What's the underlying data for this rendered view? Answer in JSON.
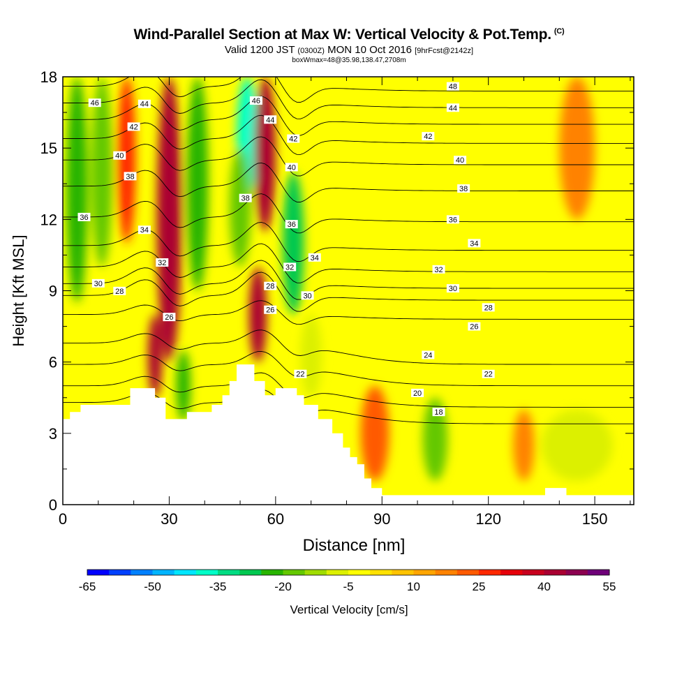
{
  "title": {
    "main": "Wind-Parallel Section at Max W: Vertical Velocity & Pot.Temp.",
    "copyright": "(C)",
    "sub_prefix": "Valid 1200 JST",
    "sub_zulu": "(0300Z)",
    "sub_date": "MON 10 Oct 2016",
    "sub_fcst": "[9hrFcst@2142z]",
    "note": "boxWmax=48@35.98,138.47,2708m"
  },
  "chart_data": {
    "type": "heatmap",
    "xlabel": "Distance [nm]",
    "ylabel": "Height [Kft MSL]",
    "xlim": [
      0,
      161
    ],
    "ylim": [
      0,
      18
    ],
    "x_ticks": [
      0,
      30,
      60,
      90,
      120,
      150
    ],
    "y_ticks": [
      0,
      3,
      6,
      9,
      12,
      15,
      18
    ],
    "colorbar": {
      "label": "Vertical Velocity [cm/s]",
      "min": -65,
      "step": 5,
      "tick_labels": [
        "-65",
        "-50",
        "-35",
        "-20",
        "-5",
        "10",
        "25",
        "40",
        "55"
      ],
      "colors": [
        "#0000ff",
        "#0040ff",
        "#0080ff",
        "#00b4ff",
        "#00e6ff",
        "#00ffc8",
        "#00dc82",
        "#00c850",
        "#28b400",
        "#64c800",
        "#a0dc00",
        "#dcf000",
        "#ffff00",
        "#ffe100",
        "#ffc300",
        "#ffa500",
        "#ff8200",
        "#ff5a00",
        "#ff2800",
        "#e6000a",
        "#c8001e",
        "#aa0032",
        "#8c0050",
        "#6e0078"
      ]
    },
    "velocity_features": [
      {
        "x": 4,
        "w": 3,
        "y_from": 8.5,
        "y_to": 18,
        "value": -25
      },
      {
        "x": 11,
        "w": 3,
        "y_from": 10,
        "y_to": 18,
        "value": -18
      },
      {
        "x": 18,
        "w": 2.5,
        "y_from": 11,
        "y_to": 18,
        "value": 25
      },
      {
        "x": 30,
        "w": 3.5,
        "y_from": 6,
        "y_to": 18,
        "value": 42
      },
      {
        "x": 26,
        "w": 2,
        "y_from": 4.5,
        "y_to": 8,
        "value": 40
      },
      {
        "x": 38,
        "w": 3,
        "y_from": 9,
        "y_to": 18,
        "value": -25
      },
      {
        "x": 34,
        "w": 2,
        "y_from": 3.5,
        "y_to": 6.5,
        "value": -25
      },
      {
        "x": 52,
        "w": 3,
        "y_from": 13,
        "y_to": 18,
        "value": -38
      },
      {
        "x": 50,
        "w": 3,
        "y_from": 10,
        "y_to": 15,
        "value": -20
      },
      {
        "x": 57,
        "w": 3,
        "y_from": 11.5,
        "y_to": 18,
        "value": 42
      },
      {
        "x": 55,
        "w": 2.5,
        "y_from": 6,
        "y_to": 10,
        "value": 40
      },
      {
        "x": 65,
        "w": 3,
        "y_from": 8,
        "y_to": 14,
        "value": -28
      },
      {
        "x": 70,
        "w": 3,
        "y_from": 4.5,
        "y_to": 8,
        "value": -10
      },
      {
        "x": 88,
        "w": 4,
        "y_from": 1,
        "y_to": 5,
        "value": 20
      },
      {
        "x": 105,
        "w": 3.5,
        "y_from": 1,
        "y_to": 4.5,
        "value": -20
      },
      {
        "x": 130,
        "w": 3,
        "y_from": 1,
        "y_to": 4,
        "value": 18
      },
      {
        "x": 145,
        "w": 10,
        "y_from": 1,
        "y_to": 4,
        "value": -8
      },
      {
        "x": 125,
        "w": 4,
        "y_from": 13,
        "y_to": 18,
        "value": -5
      },
      {
        "x": 145,
        "w": 5,
        "y_from": 12,
        "y_to": 18,
        "value": 15
      }
    ],
    "terrain": [
      [
        0,
        3.6
      ],
      [
        2,
        3.6
      ],
      [
        2,
        3.9
      ],
      [
        5,
        3.9
      ],
      [
        5,
        4.2
      ],
      [
        19,
        4.2
      ],
      [
        19,
        4.9
      ],
      [
        26,
        4.9
      ],
      [
        26,
        4.5
      ],
      [
        29,
        4.5
      ],
      [
        29,
        3.6
      ],
      [
        35,
        3.6
      ],
      [
        35,
        3.9
      ],
      [
        42,
        3.9
      ],
      [
        42,
        4.2
      ],
      [
        45,
        4.2
      ],
      [
        45,
        4.6
      ],
      [
        47,
        4.6
      ],
      [
        47,
        5.2
      ],
      [
        49,
        5.2
      ],
      [
        49,
        5.9
      ],
      [
        54,
        5.9
      ],
      [
        54,
        5.2
      ],
      [
        57,
        5.2
      ],
      [
        57,
        4.6
      ],
      [
        60,
        4.6
      ],
      [
        60,
        4.9
      ],
      [
        66,
        4.9
      ],
      [
        66,
        4.6
      ],
      [
        68,
        4.6
      ],
      [
        68,
        4.2
      ],
      [
        72,
        4.2
      ],
      [
        72,
        3.6
      ],
      [
        76,
        3.6
      ],
      [
        76,
        3.0
      ],
      [
        79,
        3.0
      ],
      [
        79,
        2.4
      ],
      [
        81,
        2.4
      ],
      [
        81,
        2.0
      ],
      [
        83,
        2.0
      ],
      [
        83,
        1.7
      ],
      [
        85,
        1.7
      ],
      [
        85,
        1.1
      ],
      [
        87,
        1.1
      ],
      [
        87,
        0.7
      ],
      [
        90,
        0.7
      ],
      [
        90,
        0.4
      ],
      [
        161,
        0.4
      ],
      [
        161,
        0
      ]
    ],
    "terrain_bumps": [
      [
        136,
        142,
        0.7
      ]
    ],
    "theta_contours": [
      {
        "level": 48,
        "base": 17.6
      },
      {
        "level": 46,
        "base": 16.9,
        "label_x": 9
      },
      {
        "level": 44,
        "base": 16.2,
        "label_x": 23
      },
      {
        "level": 42,
        "base": 15.4,
        "label_x": 20
      },
      {
        "level": 40,
        "base": 14.5,
        "label_x": 16
      },
      {
        "level": 38,
        "base": 13.4,
        "label_x": 19
      },
      {
        "level": 36,
        "base": 12.1,
        "label_x": 6
      },
      {
        "level": 34,
        "base": 10.9,
        "label_x": 23
      },
      {
        "level": 32,
        "base": 10.0,
        "label_x": 28
      },
      {
        "level": 30,
        "base": 9.3,
        "label_x": 10
      },
      {
        "level": 28,
        "base": 8.8,
        "label_x": 16
      },
      {
        "level": 26,
        "base": 8.0,
        "label_x": 30
      },
      {
        "level": 24,
        "base": 6.8
      },
      {
        "level": 22,
        "base": 5.9
      },
      {
        "level": 20,
        "base": 5.0
      },
      {
        "level": 18,
        "base": 4.3
      }
    ],
    "theta_labels": [
      {
        "text": "46",
        "x": 54.5,
        "y": 17.0
      },
      {
        "text": "44",
        "x": 58.5,
        "y": 16.2
      },
      {
        "text": "42",
        "x": 65,
        "y": 15.4
      },
      {
        "text": "40",
        "x": 64.5,
        "y": 14.2
      },
      {
        "text": "38",
        "x": 51.5,
        "y": 12.9
      },
      {
        "text": "36",
        "x": 64.5,
        "y": 11.8
      },
      {
        "text": "34",
        "x": 71,
        "y": 10.4
      },
      {
        "text": "32",
        "x": 64,
        "y": 10.0
      },
      {
        "text": "30",
        "x": 69,
        "y": 8.8
      },
      {
        "text": "28",
        "x": 58.5,
        "y": 9.2
      },
      {
        "text": "26",
        "x": 58.5,
        "y": 8.2
      },
      {
        "text": "22",
        "x": 67,
        "y": 5.5
      },
      {
        "text": "48",
        "x": 110,
        "y": 17.6
      },
      {
        "text": "44",
        "x": 110,
        "y": 16.7
      },
      {
        "text": "42",
        "x": 103,
        "y": 15.5
      },
      {
        "text": "40",
        "x": 112,
        "y": 14.5
      },
      {
        "text": "38",
        "x": 113,
        "y": 13.3
      },
      {
        "text": "36",
        "x": 110,
        "y": 12.0
      },
      {
        "text": "34",
        "x": 116,
        "y": 11.0
      },
      {
        "text": "32",
        "x": 106,
        "y": 9.9
      },
      {
        "text": "30",
        "x": 110,
        "y": 9.1
      },
      {
        "text": "28",
        "x": 120,
        "y": 8.3
      },
      {
        "text": "26",
        "x": 116,
        "y": 7.5
      },
      {
        "text": "24",
        "x": 103,
        "y": 6.3
      },
      {
        "text": "22",
        "x": 120,
        "y": 5.5
      },
      {
        "text": "20",
        "x": 100,
        "y": 4.7
      },
      {
        "text": "18",
        "x": 106,
        "y": 3.9
      }
    ]
  }
}
